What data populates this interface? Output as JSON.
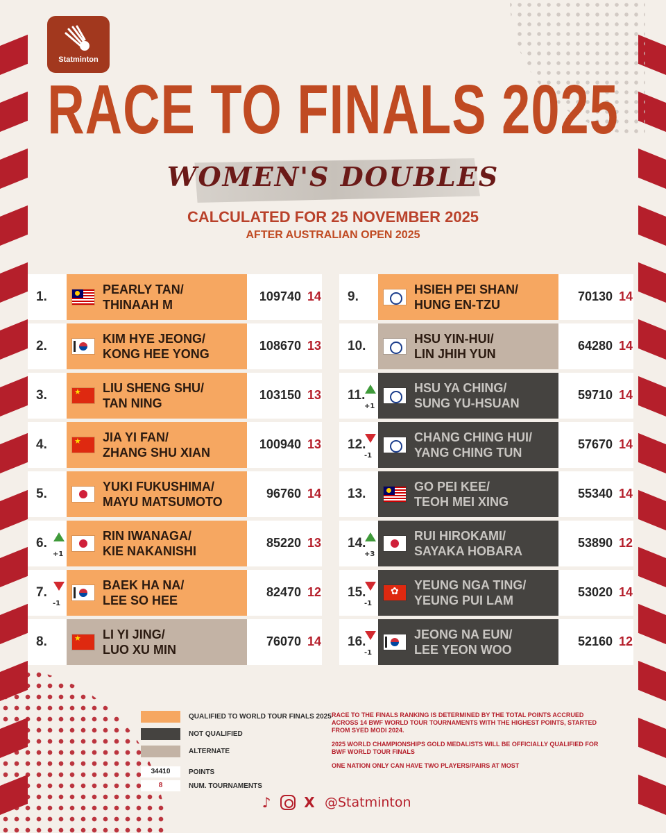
{
  "brand": {
    "name": "Statminton",
    "handle": "@Statminton"
  },
  "header": {
    "title": "RACE TO FINALS 2025",
    "category": "WOMEN'S DOUBLES",
    "calculated": "CALCULATED FOR 25 NOVEMBER 2025",
    "after": "AFTER AUSTRALIAN OPEN 2025"
  },
  "colors": {
    "qualified": "#f6a761",
    "not_qualified": "#454340",
    "alternate": "#c3b3a5",
    "accent": "#b51f2b",
    "title": "#c04a22"
  },
  "rankings": [
    {
      "rank": "1.",
      "move": "",
      "dir": "",
      "flag": "flag-my",
      "p1": "PEARLY TAN/",
      "p2": "THINAAH M",
      "points": "109740",
      "tournaments": "14",
      "status": "q"
    },
    {
      "rank": "2.",
      "move": "",
      "dir": "",
      "flag": "flag-kr",
      "p1": "KIM HYE JEONG/",
      "p2": "KONG HEE YONG",
      "points": "108670",
      "tournaments": "13",
      "status": "q"
    },
    {
      "rank": "3.",
      "move": "",
      "dir": "",
      "flag": "flag-cn",
      "p1": "LIU SHENG SHU/",
      "p2": "TAN NING",
      "points": "103150",
      "tournaments": "13",
      "status": "q"
    },
    {
      "rank": "4.",
      "move": "",
      "dir": "",
      "flag": "flag-cn",
      "p1": "JIA YI FAN/",
      "p2": "ZHANG SHU XIAN",
      "points": "100940",
      "tournaments": "13",
      "status": "q"
    },
    {
      "rank": "5.",
      "move": "",
      "dir": "",
      "flag": "flag-jp",
      "p1": "YUKI FUKUSHIMA/",
      "p2": "MAYU MATSUMOTO",
      "points": "96760",
      "tournaments": "14",
      "status": "q"
    },
    {
      "rank": "6.",
      "move": "+1",
      "dir": "up",
      "flag": "flag-jp",
      "p1": "RIN IWANAGA/",
      "p2": "KIE NAKANISHI",
      "points": "85220",
      "tournaments": "13",
      "status": "q"
    },
    {
      "rank": "7.",
      "move": "-1",
      "dir": "down",
      "flag": "flag-kr",
      "p1": "BAEK HA NA/",
      "p2": "LEE SO HEE",
      "points": "82470",
      "tournaments": "12",
      "status": "q"
    },
    {
      "rank": "8.",
      "move": "",
      "dir": "",
      "flag": "flag-cn",
      "p1": "LI YI JING/",
      "p2": "LUO XU MIN",
      "points": "76070",
      "tournaments": "14",
      "status": "a"
    },
    {
      "rank": "9.",
      "move": "",
      "dir": "",
      "flag": "flag-tpe",
      "p1": "HSIEH PEI SHAN/",
      "p2": "HUNG EN-TZU",
      "points": "70130",
      "tournaments": "14",
      "status": "q"
    },
    {
      "rank": "10.",
      "move": "",
      "dir": "",
      "flag": "flag-tpe",
      "p1": "HSU YIN-HUI/",
      "p2": "LIN JHIH YUN",
      "points": "64280",
      "tournaments": "14",
      "status": "a"
    },
    {
      "rank": "11.",
      "move": "+1",
      "dir": "up",
      "flag": "flag-tpe",
      "p1": "HSU YA CHING/",
      "p2": "SUNG YU-HSUAN",
      "points": "59710",
      "tournaments": "14",
      "status": "n"
    },
    {
      "rank": "12.",
      "move": "-1",
      "dir": "down",
      "flag": "flag-tpe",
      "p1": "CHANG CHING HUI/",
      "p2": "YANG CHING TUN",
      "points": "57670",
      "tournaments": "14",
      "status": "n"
    },
    {
      "rank": "13.",
      "move": "",
      "dir": "",
      "flag": "flag-my",
      "p1": "GO PEI KEE/",
      "p2": "TEOH MEI XING",
      "points": "55340",
      "tournaments": "14",
      "status": "n"
    },
    {
      "rank": "14.",
      "move": "+3",
      "dir": "up",
      "flag": "flag-jp",
      "p1": "RUI HIROKAMI/",
      "p2": "SAYAKA HOBARA",
      "points": "53890",
      "tournaments": "12",
      "status": "n"
    },
    {
      "rank": "15.",
      "move": "-1",
      "dir": "down",
      "flag": "flag-hk",
      "p1": "YEUNG NGA TING/",
      "p2": "YEUNG PUI LAM",
      "points": "53020",
      "tournaments": "14",
      "status": "n"
    },
    {
      "rank": "16.",
      "move": "-1",
      "dir": "down",
      "flag": "flag-kr",
      "p1": "JEONG NA EUN/",
      "p2": "LEE YEON WOO",
      "points": "52160",
      "tournaments": "12",
      "status": "n"
    }
  ],
  "legend": {
    "qualified": "QUALIFIED TO WORLD TOUR FINALS 2025",
    "not_qualified": "NOT QUALIFIED",
    "alternate": "ALTERNATE",
    "points_sample": "34410",
    "points_label": "POINTS",
    "tourn_sample": "8",
    "tourn_label": "NUM. TOURNAMENTS"
  },
  "notes": [
    "RACE TO THE FINALS RANKING IS DETERMINED BY THE TOTAL POINTS ACCRUED ACROSS 14 BWF WORLD TOUR TOURNAMENTS WITH THE HIGHEST POINTS, STARTED FROM SYED MODI 2024.",
    "2025 WORLD CHAMPIONSHIPS GOLD MEDALISTS WILL BE OFFICIALLY QUALIFIED FOR BWF WORLD TOUR FINALS",
    "ONE NATION ONLY CAN HAVE TWO PLAYERS/PAIRS AT MOST"
  ],
  "social_icons": [
    "tiktok-icon",
    "instagram-icon",
    "x-icon"
  ]
}
